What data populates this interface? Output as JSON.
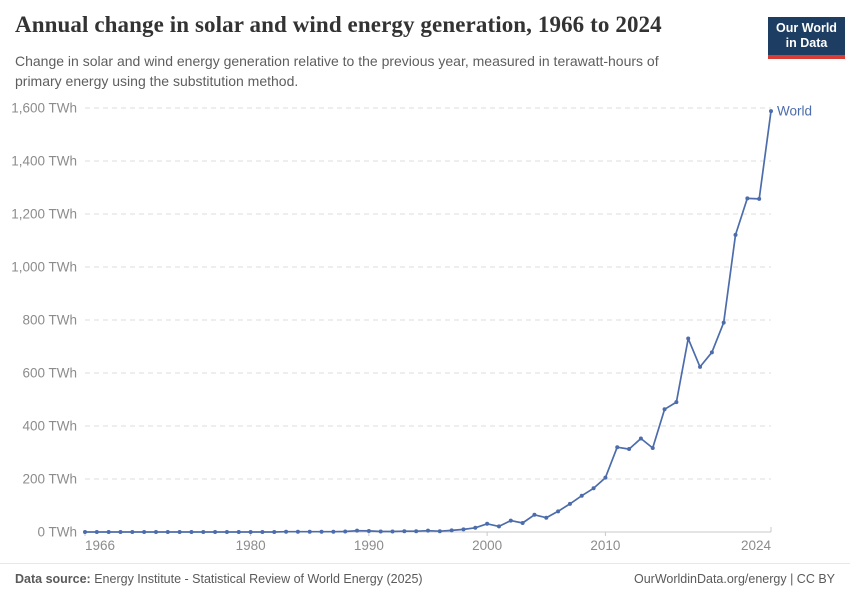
{
  "header": {
    "title": "Annual change in solar and wind energy generation, 1966 to 2024",
    "subtitle_lines": [
      "Change in solar and wind energy generation relative to the previous year, measured in terawatt-hours of",
      "primary energy using the substitution method."
    ],
    "logo": {
      "line1": "Our World",
      "line2": "in Data",
      "bg": "#1d3d63",
      "accent": "#d93c34"
    }
  },
  "chart_data": {
    "type": "line",
    "title": "Annual change in solar and wind energy generation, 1966 to 2024",
    "unit": "TWh",
    "xlabel": "",
    "ylabel": "TWh",
    "xlim": [
      1966,
      2024
    ],
    "ylim": [
      0,
      1600
    ],
    "yticks": [
      0,
      200,
      400,
      600,
      800,
      1000,
      1200,
      1400,
      1600
    ],
    "xticks": [
      1966,
      1980,
      1990,
      2000,
      2010,
      2024
    ],
    "grid": "horizontal-dashed",
    "legend_position": "end-of-line-label",
    "series": [
      {
        "name": "World",
        "color": "#4c6cab",
        "x": [
          1966,
          1967,
          1968,
          1969,
          1970,
          1971,
          1972,
          1973,
          1974,
          1975,
          1976,
          1977,
          1978,
          1979,
          1980,
          1981,
          1982,
          1983,
          1984,
          1985,
          1986,
          1987,
          1988,
          1989,
          1990,
          1991,
          1992,
          1993,
          1994,
          1995,
          1996,
          1997,
          1998,
          1999,
          2000,
          2001,
          2002,
          2003,
          2004,
          2005,
          2006,
          2007,
          2008,
          2009,
          2010,
          2011,
          2012,
          2013,
          2014,
          2015,
          2016,
          2017,
          2018,
          2019,
          2020,
          2021,
          2022,
          2023,
          2024
        ],
        "values": [
          0,
          0,
          0,
          0,
          0,
          0,
          0,
          0,
          0,
          0,
          0,
          0,
          0,
          0,
          0,
          0,
          0,
          1,
          1,
          1,
          1,
          1,
          2,
          5,
          4,
          2,
          2,
          3,
          3,
          5,
          3,
          6,
          10,
          16,
          31,
          21,
          43,
          34,
          65,
          54,
          78,
          106,
          137,
          165,
          205,
          320,
          313,
          353,
          317,
          463,
          490,
          730,
          623,
          678,
          790,
          1121,
          1259,
          1257,
          1588
        ]
      }
    ],
    "end_label": "World"
  },
  "colors": {
    "line": "#4c6cab",
    "grid": "#dedede",
    "axis": "#c9c9c9",
    "tick_label": "#8c8c8c",
    "title": "#333333",
    "subtitle": "#5e5e5e",
    "footer": "#5a5a5a"
  },
  "footer": {
    "source_label": "Data source:",
    "source_text": " Energy Institute - Statistical Review of World Energy (2025)",
    "credit": "OurWorldinData.org/energy | CC BY"
  }
}
